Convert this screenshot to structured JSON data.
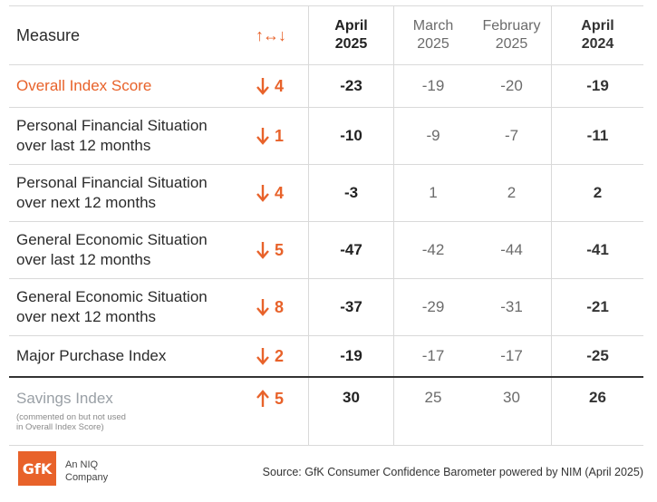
{
  "header": {
    "measure": "Measure",
    "change_symbol": "↑↔↓",
    "col_apr25": [
      "April",
      "2025"
    ],
    "col_mar25": [
      "March",
      "2025"
    ],
    "col_feb25": [
      "February",
      "2025"
    ],
    "col_apr24": [
      "April",
      "2024"
    ]
  },
  "rows": [
    {
      "measure": [
        "Overall Index Score"
      ],
      "direction": "down",
      "change": "4",
      "apr25": "-23",
      "mar25": "-19",
      "feb25": "-20",
      "apr24": "-19"
    },
    {
      "measure": [
        "Personal Financial Situation",
        "over last 12 months"
      ],
      "direction": "down",
      "change": "1",
      "apr25": "-10",
      "mar25": "-9",
      "feb25": "-7",
      "apr24": "-11"
    },
    {
      "measure": [
        "Personal Financial Situation",
        "over next 12 months"
      ],
      "direction": "down",
      "change": "4",
      "apr25": "-3",
      "mar25": "1",
      "feb25": "2",
      "apr24": "2"
    },
    {
      "measure": [
        "General Economic Situation",
        "over last 12 months"
      ],
      "direction": "down",
      "change": "5",
      "apr25": "-47",
      "mar25": "-42",
      "feb25": "-44",
      "apr24": "-41"
    },
    {
      "measure": [
        "General Economic Situation",
        "over next 12 months"
      ],
      "direction": "down",
      "change": "8",
      "apr25": "-37",
      "mar25": "-29",
      "feb25": "-31",
      "apr24": "-21"
    },
    {
      "measure": [
        "Major Purchase Index"
      ],
      "direction": "down",
      "change": "2",
      "apr25": "-19",
      "mar25": "-17",
      "feb25": "-17",
      "apr24": "-25"
    },
    {
      "measure": [
        "Savings Index"
      ],
      "note": [
        "(commented on but not used",
        "in Overall Index Score)"
      ],
      "direction": "up",
      "change": "5",
      "apr25": "30",
      "mar25": "25",
      "feb25": "30",
      "apr24": "26"
    }
  ],
  "footer": {
    "logo_text": "GfK",
    "company_lines": [
      "An NIQ",
      "Company"
    ],
    "source": "Source: GfK Consumer Confidence Barometer powered by NIM (April 2025)"
  },
  "colors": {
    "accent": "#e8622a",
    "muted": "#9aa0a6"
  }
}
